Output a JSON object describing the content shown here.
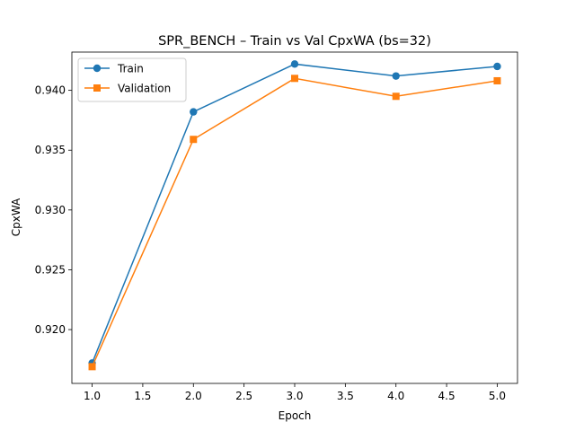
{
  "chart_data": {
    "type": "line",
    "title": "SPR_BENCH – Train vs Val CpxWA (bs=32)",
    "xlabel": "Epoch",
    "ylabel": "CpxWA",
    "x": [
      1,
      2,
      3,
      4,
      5
    ],
    "xlim": [
      0.8,
      5.2
    ],
    "ylim": [
      0.9155,
      0.9432
    ],
    "xticks": [
      1.0,
      1.5,
      2.0,
      2.5,
      3.0,
      3.5,
      4.0,
      4.5,
      5.0
    ],
    "xtick_labels": [
      "1.0",
      "1.5",
      "2.0",
      "2.5",
      "3.0",
      "3.5",
      "4.0",
      "4.5",
      "5.0"
    ],
    "yticks": [
      0.92,
      0.925,
      0.93,
      0.935,
      0.94
    ],
    "ytick_labels": [
      "0.920",
      "0.925",
      "0.930",
      "0.935",
      "0.940"
    ],
    "grid": false,
    "legend_position": "upper-left",
    "series": [
      {
        "name": "Train",
        "values": [
          0.9172,
          0.9382,
          0.9422,
          0.9412,
          0.942
        ],
        "color": "#1f77b4",
        "marker": "circle"
      },
      {
        "name": "Validation",
        "values": [
          0.9169,
          0.9359,
          0.941,
          0.9395,
          0.9408
        ],
        "color": "#ff7f0e",
        "marker": "square"
      }
    ]
  }
}
